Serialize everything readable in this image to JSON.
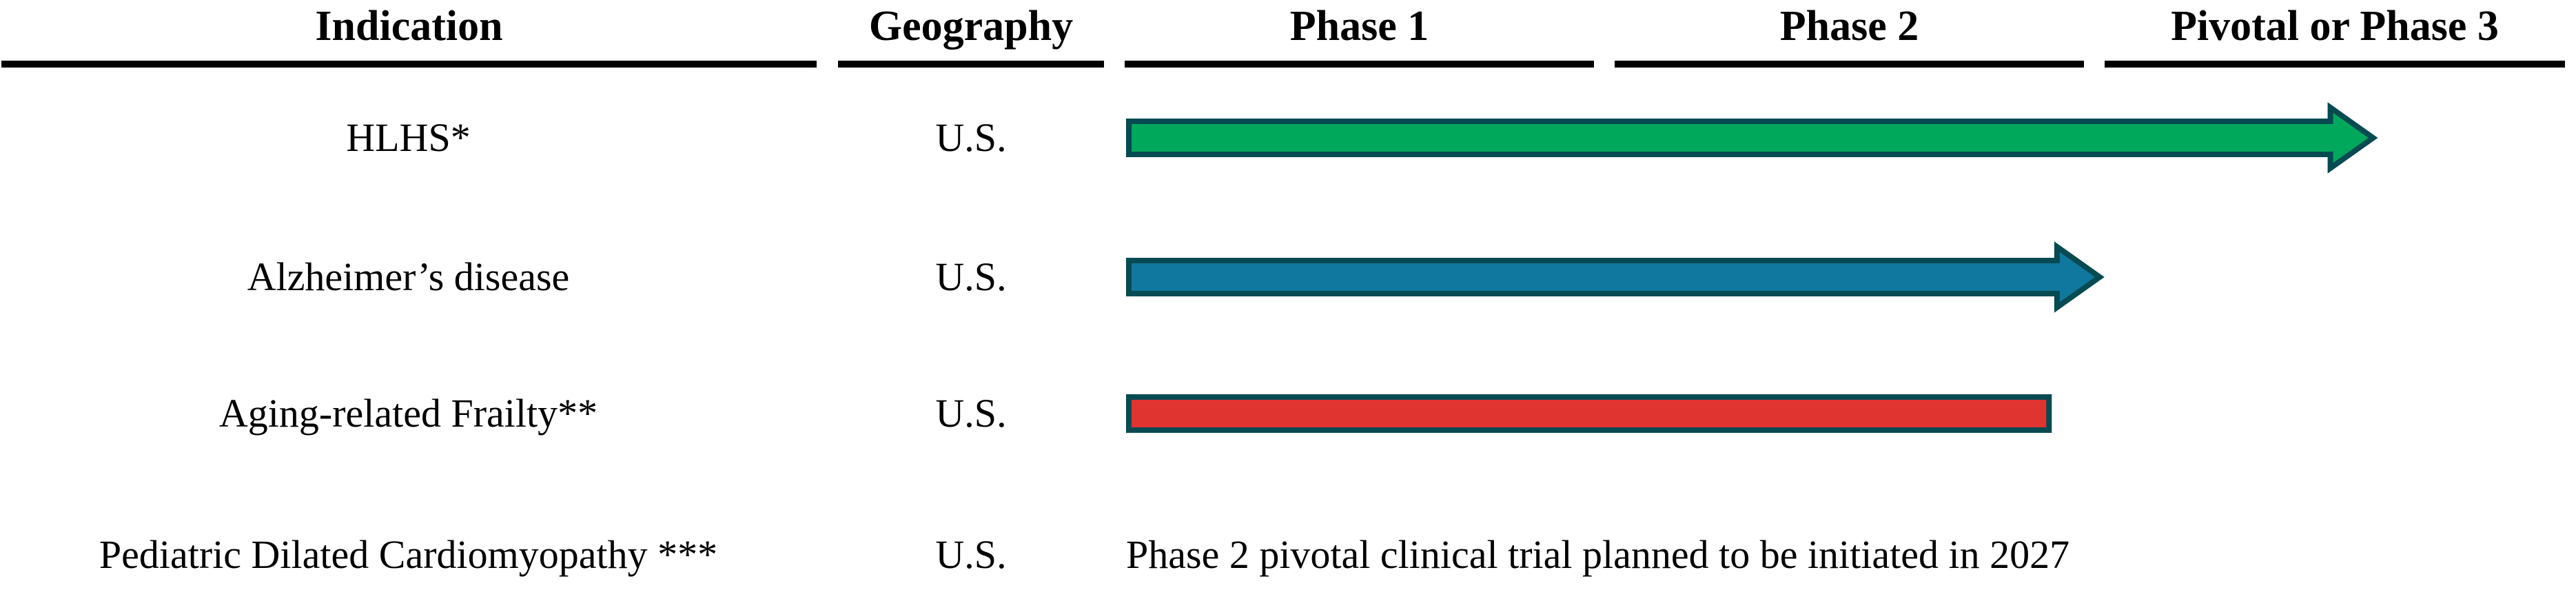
{
  "header": {
    "columns": [
      "Indication",
      "Geography",
      "Phase 1",
      "Phase 2",
      "Pivotal or Phase 3"
    ]
  },
  "rows": [
    {
      "indication": "HLHS*",
      "geography": "U.S."
    },
    {
      "indication": "Alzheimer’s disease",
      "geography": "U.S."
    },
    {
      "indication": "Aging-related Frailty**",
      "geography": "U.S."
    },
    {
      "indication": "Pediatric Dilated Cardiomyopathy ***",
      "geography": "U.S.",
      "note": "Phase 2 pivotal clinical trial planned to be initiated in 2027"
    }
  ],
  "colors": {
    "background": "#FFFFFF",
    "text": "#000000",
    "header_rule": "#000000",
    "bar_border": "#064A52",
    "hlhs_bar": "#00A85C",
    "alzheimers_bar": "#10789E",
    "frailty_bar": "#E03431"
  },
  "chart_data": {
    "type": "bar",
    "subtype": "pipeline-gantt",
    "orientation": "horizontal",
    "title": "",
    "columns": [
      "Indication",
      "Geography",
      "Phase 1",
      "Phase 2",
      "Pivotal or Phase 3"
    ],
    "phase_axis": {
      "min": 0,
      "max": 3,
      "units": "phase columns: 0 = start of Phase 1, 1 = end of Phase 1, 2 = end of Phase 2, 3 = end of Pivotal or Phase 3"
    },
    "series": [
      {
        "name": "HLHS*",
        "geography": "U.S.",
        "start": 0,
        "end": 2.6,
        "shape": "arrow",
        "color": "#00A85C",
        "reading": "arrow spans Phase 1 and Phase 2 and extends about 60% into Pivotal or Phase 3"
      },
      {
        "name": "Alzheimer’s disease",
        "geography": "U.S.",
        "start": 0,
        "end": 2.03,
        "shape": "arrow",
        "color": "#10789E",
        "reading": "arrow spans Phase 1 and all of Phase 2, tip at the Phase 2 / Pivotal boundary"
      },
      {
        "name": "Aging-related Frailty**",
        "geography": "U.S.",
        "start": 0,
        "end": 1.93,
        "shape": "rect",
        "color": "#E03431",
        "reading": "flat-ended bar spans Phase 1 and nearly all of Phase 2"
      },
      {
        "name": "Pediatric Dilated Cardiomyopathy ***",
        "geography": "U.S.",
        "start": null,
        "end": null,
        "shape": "text",
        "note": "Phase 2 pivotal clinical trial planned to be initiated in 2027"
      }
    ],
    "legend": "none",
    "grid": "off"
  }
}
